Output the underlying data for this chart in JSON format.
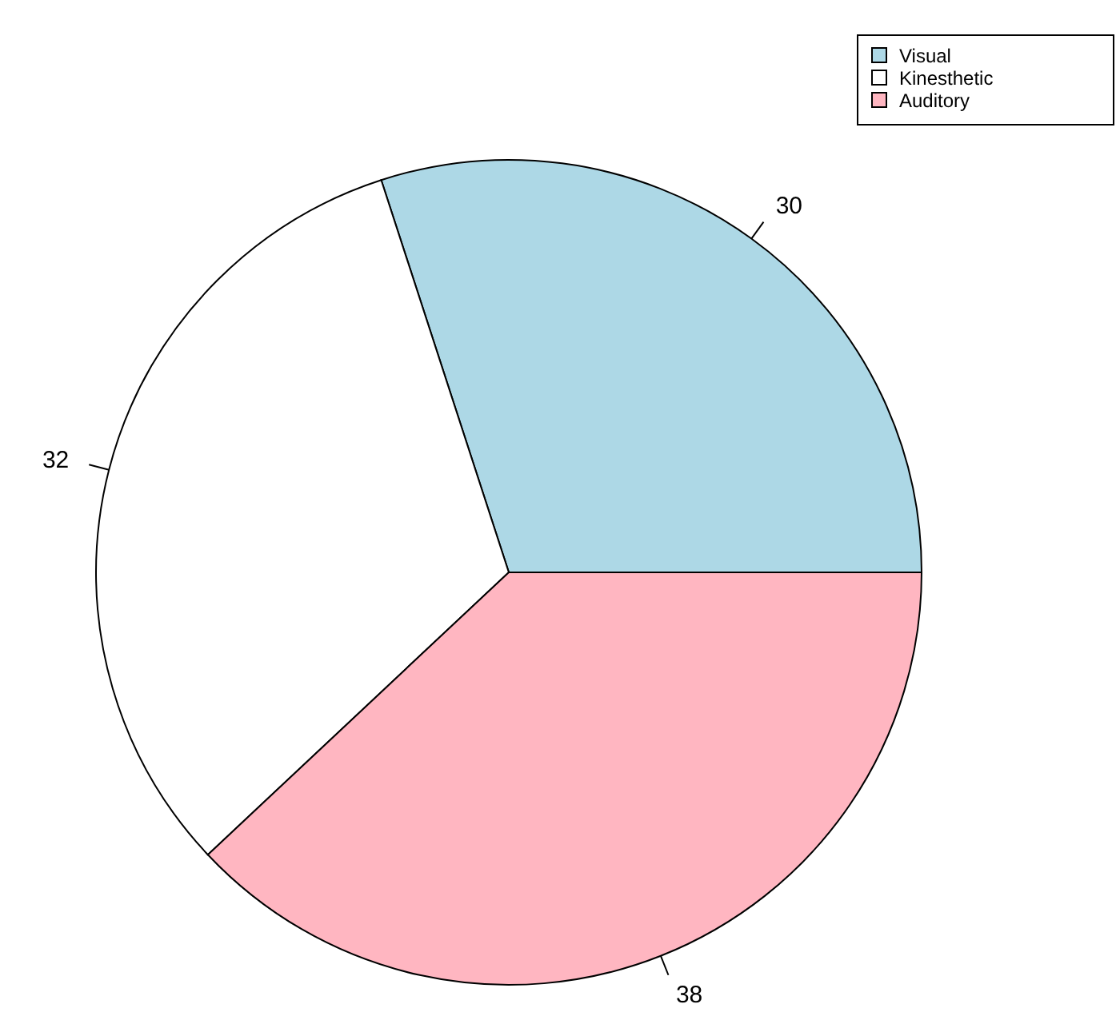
{
  "chart_data": {
    "type": "pie",
    "categories": [
      "Visual",
      "Kinesthetic",
      "Auditory"
    ],
    "values": [
      30,
      32,
      38
    ],
    "colors": [
      "#add8e6",
      "#ffffff",
      "#ffb6c1"
    ],
    "data_labels": true,
    "legend": "top right"
  }
}
